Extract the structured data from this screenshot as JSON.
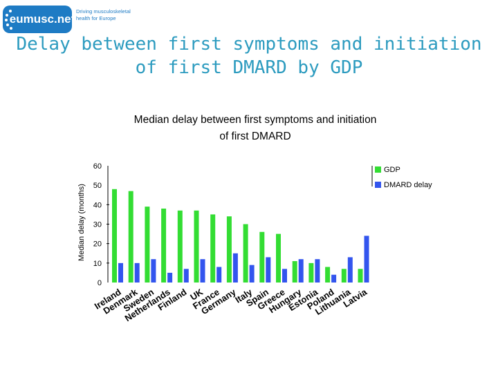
{
  "logo": {
    "brand": "eumusc.net",
    "tagline_line1": "Driving musculoskeletal",
    "tagline_line2": "health for Europe"
  },
  "slide": {
    "title_line1": "Delay between first symptoms and initiation",
    "title_line2": "of first DMARD by GDP"
  },
  "colors": {
    "gdp": "#33dd33",
    "dmard": "#3355ee",
    "title": "#2c9bbf",
    "brand": "#1e7bc4"
  },
  "chart_data": {
    "type": "bar",
    "title_line1": "Median delay between first symptoms and initiation",
    "title_line2": "of first DMARD",
    "ylabel": "Median delay (months)",
    "xlabel": "",
    "ylim": [
      0,
      60
    ],
    "yticks": [
      0,
      10,
      20,
      30,
      40,
      50,
      60
    ],
    "categories": [
      "Ireland",
      "Denmark",
      "Sweden",
      "Netherlands",
      "Finland",
      "UK",
      "France",
      "Germany",
      "Italy",
      "Spain",
      "Greece",
      "Hungary",
      "Estonia",
      "Poland",
      "Lithuania",
      "Latvia"
    ],
    "series": [
      {
        "name": "GDP",
        "values": [
          48,
          47,
          39,
          38,
          37,
          37,
          35,
          34,
          30,
          26,
          25,
          11,
          10,
          8,
          7,
          7
        ]
      },
      {
        "name": "DMARD delay",
        "values": [
          10,
          10,
          12,
          5,
          7,
          12,
          8,
          15,
          9,
          13,
          7,
          12,
          12,
          4,
          13,
          24
        ]
      }
    ],
    "legend_position": "top-right"
  }
}
